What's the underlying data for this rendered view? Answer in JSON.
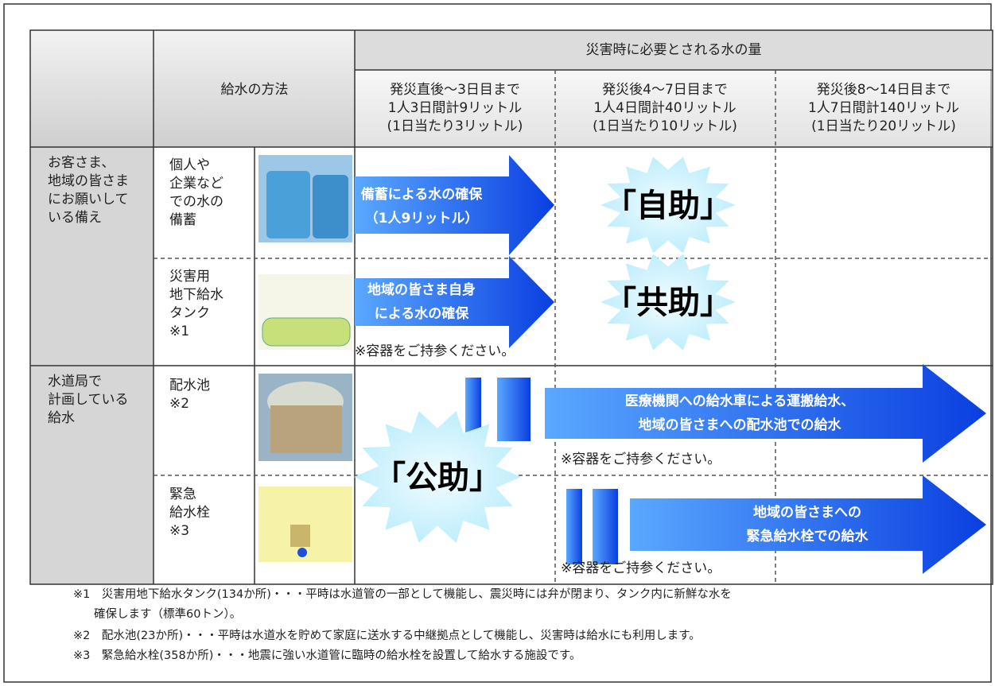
{
  "header": {
    "group_title": "災害時に必要とされる水の量",
    "method_title": "給水の方法",
    "periods": [
      {
        "lines": [
          "発災直後～3日目まで",
          "1人3日間計9リットル",
          "(1日当たり3リットル)"
        ]
      },
      {
        "lines": [
          "発災後4～7日目まで",
          "1人4日間計40リットル",
          "(1日当たり10リットル)"
        ]
      },
      {
        "lines": [
          "発災後8～14日目まで",
          "1人7日間計140リットル",
          "(1日当たり20リットル)"
        ]
      }
    ]
  },
  "groups": [
    {
      "lines": [
        "お客さま、",
        "地域の皆さま",
        "にお願いして",
        "いる備え"
      ],
      "items": [
        {
          "lines": [
            "個人や",
            "企業など",
            "での水の",
            "備蓄"
          ]
        },
        {
          "lines": [
            "災害用",
            "地下給水",
            "タンク",
            "※1"
          ]
        }
      ]
    },
    {
      "lines": [
        "水道局で",
        "計画している",
        "給水"
      ],
      "items": [
        {
          "lines": [
            "配水池",
            "※2"
          ]
        },
        {
          "lines": [
            "緊急",
            "給水栓",
            "※3"
          ]
        }
      ]
    }
  ],
  "arrows": [
    {
      "lines": [
        "備蓄による水の確保",
        "（1人9リットル）"
      ]
    },
    {
      "lines": [
        "地域の皆さま自身",
        "による水の確保"
      ]
    },
    {
      "lines": [
        "医療機関への給水車による運搬給水、",
        "地域の皆さまへの配水池での給水"
      ]
    },
    {
      "lines": [
        "地域の皆さまへの",
        "緊急給水栓での給水"
      ]
    }
  ],
  "bursts": [
    "「自助」",
    "「共助」",
    "「公助」"
  ],
  "container_notes": [
    "※容器をご持参ください。",
    "※容器をご持参ください。",
    "※容器をご持参ください。"
  ],
  "footnotes": [
    {
      "lines": [
        "※1　災害用地下給水タンク(134か所)・・・平時は水道管の一部として機能し、震災時には弁が閉まり、タンク内に新鮮な水を",
        "確保します（標準60トン）。"
      ]
    },
    {
      "lines": [
        "※2　配水池(23か所)・・・平時は水道水を貯めて家庭に送水する中継拠点として機能し、災害時は給水にも利用します。"
      ]
    },
    {
      "lines": [
        "※3　緊急給水栓(358か所)・・・地震に強い水道管に臨時の給水栓を設置して給水する施設です。"
      ]
    }
  ]
}
